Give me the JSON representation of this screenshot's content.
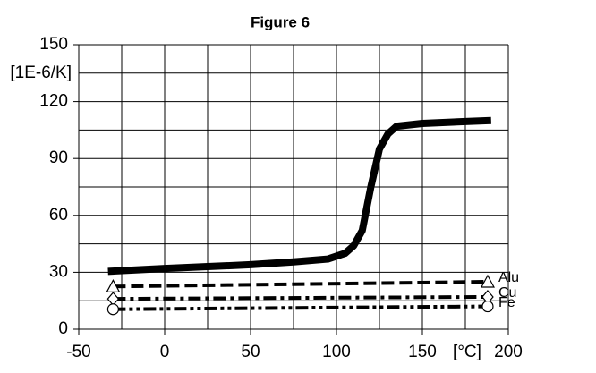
{
  "chart_data": {
    "type": "line",
    "title": "Figure 6",
    "xlabel": "[°C]",
    "ylabel": "[1E-6/K]",
    "xlim": [
      -50,
      200
    ],
    "ylim": [
      0,
      150
    ],
    "xticks": [
      -50,
      0,
      50,
      100,
      150,
      200
    ],
    "yticks": [
      0,
      30,
      60,
      90,
      120,
      150
    ],
    "x_minor_ticks": [
      -25,
      25,
      75,
      125,
      175
    ],
    "y_minor_ticks": [
      15,
      45,
      75,
      105,
      135
    ],
    "grid": true,
    "series": [
      {
        "color": "#000000",
        "linestyle": "bold",
        "x": [
          -33,
          0,
          25,
          50,
          75,
          95,
          105,
          110,
          115,
          120,
          125,
          130,
          135,
          150,
          175,
          190
        ],
        "values": [
          30.5,
          32,
          33,
          34,
          35.5,
          37,
          40,
          44,
          52,
          75,
          95,
          103,
          107,
          108.5,
          109.5,
          110
        ]
      },
      {
        "name": "Alu",
        "color": "#000000",
        "linestyle": "dashed",
        "marker": "triangle",
        "x": [
          -30,
          188
        ],
        "values": [
          22.5,
          25
        ]
      },
      {
        "name": "Cu",
        "color": "#000000",
        "linestyle": "dashdot",
        "marker": "diamond",
        "x": [
          -30,
          188
        ],
        "values": [
          16,
          17
        ]
      },
      {
        "name": "Fe",
        "color": "#000000",
        "linestyle": "dashdotdot",
        "marker": "circle",
        "x": [
          -30,
          188
        ],
        "values": [
          10.5,
          12
        ]
      }
    ]
  }
}
